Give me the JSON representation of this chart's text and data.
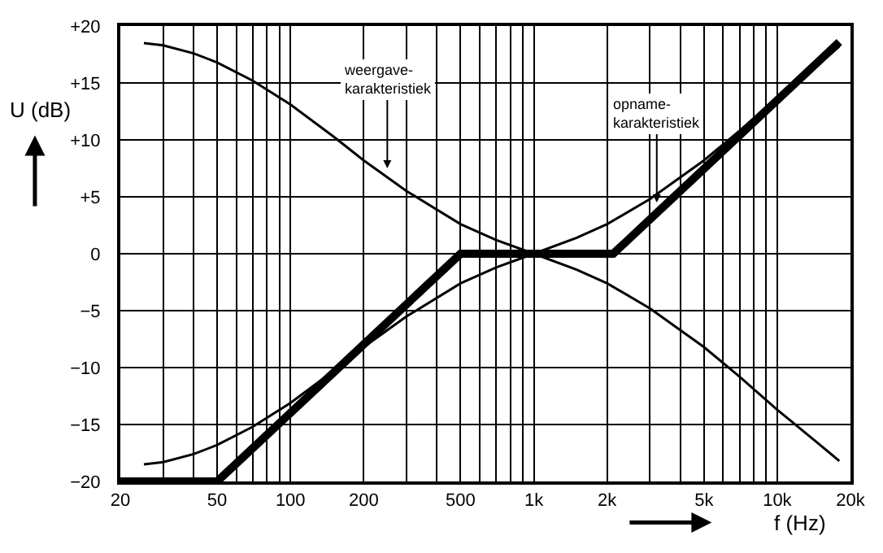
{
  "chart_data": {
    "type": "line",
    "xlabel": "f (Hz)",
    "ylabel": "U (dB)",
    "x": [
      25,
      30,
      40,
      50,
      70,
      100,
      150,
      200,
      300,
      500,
      700,
      1000,
      1500,
      2000,
      3000,
      5000,
      7000,
      10000,
      15000,
      18000
    ],
    "series": [
      {
        "color": "#000000",
        "values": [
          18.5,
          18.3,
          17.6,
          16.8,
          15.2,
          13.1,
          10.3,
          8.2,
          5.5,
          2.6,
          1.2,
          0,
          -1.4,
          -2.6,
          -4.8,
          -8.2,
          -10.8,
          -13.7,
          -16.8,
          -18.2
        ]
      },
      {
        "color": "#000000",
        "values": [
          -18.5,
          -18.3,
          -17.6,
          -16.8,
          -15.2,
          -13.1,
          -10.3,
          -8.2,
          -5.5,
          -2.6,
          -1.2,
          0,
          1.4,
          2.6,
          4.8,
          8.2,
          10.8,
          13.7,
          16.8,
          18.2
        ]
      },
      {
        "color": "#000000",
        "x": [
          20,
          50,
          500,
          2120,
          18000
        ],
        "values": [
          -20,
          -20,
          0,
          0,
          18.6
        ]
      }
    ],
    "log": "x",
    "xlim": [
      20,
      20000
    ],
    "ylim": [
      -20,
      20
    ],
    "xticks": [
      20,
      {
        "value": 30,
        "label": null
      },
      {
        "value": 40,
        "label": null
      },
      50,
      {
        "value": 60,
        "label": null
      },
      {
        "value": 70,
        "label": null
      },
      {
        "value": 80,
        "label": null
      },
      {
        "value": 90,
        "label": null
      },
      100,
      200,
      {
        "value": 300,
        "label": null
      },
      {
        "value": 400,
        "label": null
      },
      500,
      {
        "value": 600,
        "label": null
      },
      {
        "value": 700,
        "label": null
      },
      {
        "value": 800,
        "label": null
      },
      {
        "value": 900,
        "label": null
      },
      {
        "value": 1000,
        "label": "1k"
      },
      {
        "value": 2000,
        "label": "2k"
      },
      {
        "value": 3000,
        "label": null
      },
      {
        "value": 4000,
        "label": null
      },
      {
        "value": 5000,
        "label": "5k"
      },
      {
        "value": 6000,
        "label": null
      },
      {
        "value": 7000,
        "label": null
      },
      {
        "value": 8000,
        "label": null
      },
      {
        "value": 9000,
        "label": null
      },
      {
        "value": 10000,
        "label": "10k"
      },
      {
        "value": 20000,
        "label": "20k"
      }
    ],
    "yticks": [
      {
        "value": -20,
        "label": "−20"
      },
      {
        "value": -15,
        "label": "−15"
      },
      {
        "value": -10,
        "label": "−10"
      },
      {
        "value": -5,
        "label": "−5"
      },
      0,
      {
        "value": 5,
        "label": "+5"
      },
      {
        "value": 10,
        "label": "+10"
      },
      {
        "value": 15,
        "label": "+15"
      },
      {
        "value": 20,
        "label": "+20"
      }
    ],
    "grid": true,
    "marker": "none",
    "line_style": "solid",
    "annotations": [
      {
        "text": "weergave-\nkarakteristiek",
        "x": 250,
        "y": 7.5
      },
      {
        "text": "opname-\nkarakteristiek",
        "x": 3200,
        "y": 4.5
      }
    ]
  }
}
